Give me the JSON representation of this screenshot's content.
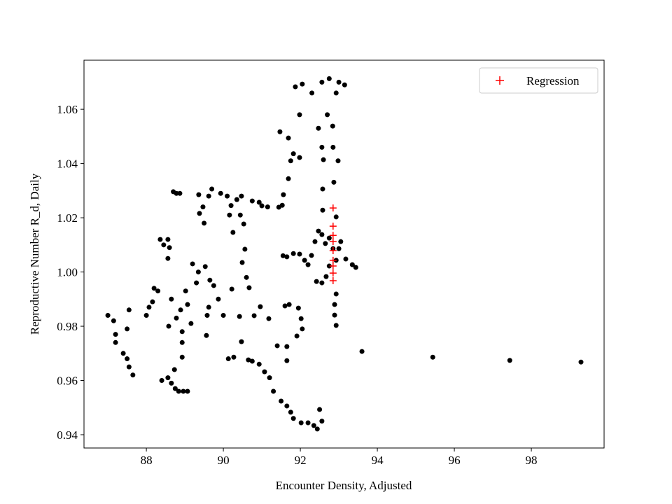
{
  "chart_data": {
    "type": "scatter",
    "xlabel": "Encounter Density, Adjusted",
    "ylabel": "Reproductive Number R_d, Daily",
    "xlim": [
      86.38,
      99.89
    ],
    "ylim": [
      0.9351,
      1.0781
    ],
    "xticks": [
      88,
      90,
      92,
      94,
      96,
      98
    ],
    "yticks": [
      0.94,
      0.96,
      0.98,
      {
        "value": 1,
        "label": "1.00"
      },
      1.02,
      1.04,
      1.06
    ],
    "legend": "upper right",
    "series": [
      {
        "color": "#000000",
        "marker": "dot",
        "x": [
          87.0,
          87.15,
          87.2,
          87.2,
          87.4,
          87.5,
          87.55,
          87.65,
          87.5,
          87.55,
          88.0,
          88.07,
          88.16,
          88.2,
          88.3,
          88.36,
          88.45,
          88.56,
          88.6,
          88.56,
          88.58,
          88.65,
          88.7,
          88.78,
          88.87,
          88.4,
          88.56,
          88.65,
          88.75,
          88.84,
          88.96,
          89.07,
          88.73,
          88.78,
          88.89,
          88.93,
          88.93,
          88.93,
          89.02,
          89.07,
          89.16,
          89.2,
          89.3,
          89.35,
          89.36,
          89.38,
          89.47,
          89.5,
          89.53,
          89.58,
          89.62,
          89.56,
          89.65,
          89.75,
          89.62,
          89.7,
          89.87,
          89.93,
          90.0,
          90.1,
          90.16,
          90.2,
          90.22,
          90.13,
          90.27,
          90.25,
          90.35,
          90.47,
          90.42,
          90.49,
          90.44,
          90.47,
          90.53,
          90.56,
          90.6,
          90.67,
          90.65,
          90.75,
          90.8,
          90.75,
          90.93,
          91.0,
          91.15,
          90.93,
          90.96,
          91.07,
          91.18,
          91.2,
          91.3,
          91.4,
          91.44,
          91.53,
          91.5,
          91.55,
          91.6,
          91.65,
          91.65,
          91.65,
          91.71,
          91.75,
          91.82,
          91.56,
          91.69,
          91.75,
          91.69,
          91.47,
          91.82,
          91.98,
          91.98,
          91.87,
          92.05,
          92.3,
          92.47,
          92.56,
          92.75,
          93.0,
          93.15,
          92.93,
          92.7,
          92.84,
          92.56,
          92.6,
          92.58,
          92.58,
          92.85,
          92.98,
          92.87,
          92.93,
          91.95,
          92.02,
          92.05,
          91.91,
          92.02,
          92.2,
          92.35,
          92.44,
          92.5,
          92.56,
          91.65,
          91.82,
          91.98,
          92.11,
          92.2,
          92.29,
          92.38,
          92.47,
          92.56,
          92.65,
          92.42,
          92.56,
          92.67,
          92.75,
          92.93,
          93.0,
          93.05,
          92.85,
          92.75,
          93.18,
          93.35,
          93.44,
          92.93,
          92.89,
          92.93,
          92.89,
          93.6,
          95.44,
          97.44,
          99.29
        ],
        "values": [
          0.984,
          0.982,
          0.977,
          0.974,
          0.97,
          0.968,
          0.965,
          0.962,
          0.979,
          0.986,
          0.984,
          0.987,
          0.989,
          0.994,
          0.993,
          1.012,
          1.01,
          1.012,
          1.009,
          1.005,
          0.98,
          0.99,
          1.0296,
          1.029,
          1.029,
          0.96,
          0.961,
          0.959,
          0.957,
          0.956,
          0.956,
          0.956,
          0.964,
          0.983,
          0.986,
          0.9686,
          0.974,
          0.978,
          0.993,
          0.988,
          0.981,
          1.003,
          0.996,
          1.0,
          1.0285,
          1.0216,
          1.024,
          1.018,
          1.002,
          0.984,
          0.987,
          0.9766,
          0.997,
          0.995,
          1.028,
          1.0306,
          0.99,
          1.029,
          0.984,
          1.028,
          1.021,
          1.0245,
          0.9937,
          0.968,
          0.9686,
          1.0146,
          1.0267,
          1.028,
          0.9836,
          1.0035,
          1.021,
          0.9743,
          1.0177,
          1.0084,
          0.998,
          0.9942,
          0.9676,
          0.9671,
          0.9839,
          1.0262,
          1.0257,
          1.0244,
          1.024,
          0.966,
          0.9872,
          0.9632,
          0.9828,
          0.961,
          0.956,
          0.9728,
          1.0239,
          1.0246,
          0.9524,
          1.006,
          0.9875,
          0.9725,
          0.9673,
          0.9506,
          0.988,
          0.9483,
          0.946,
          1.0285,
          1.0344,
          1.041,
          1.0494,
          1.0517,
          1.0436,
          1.0422,
          1.058,
          1.0683,
          1.0693,
          1.066,
          1.053,
          1.07,
          1.0713,
          1.07,
          1.069,
          1.066,
          1.058,
          1.0538,
          1.046,
          1.0414,
          1.0306,
          1.0228,
          1.046,
          1.041,
          1.0331,
          1.0203,
          0.9867,
          0.9828,
          0.979,
          0.9764,
          0.9444,
          0.9444,
          0.9434,
          0.9421,
          0.9493,
          0.945,
          1.0056,
          1.0068,
          1.0066,
          1.0043,
          1.0027,
          1.0061,
          1.0112,
          1.0151,
          1.0138,
          1.0105,
          0.9965,
          0.996,
          0.9983,
          1.0022,
          1.0043,
          1.0086,
          1.0112,
          1.0086,
          1.0125,
          1.0048,
          1.0027,
          1.0017,
          0.9919,
          0.988,
          0.9803,
          0.9841,
          0.9707,
          0.9686,
          0.9674,
          0.9668
        ]
      },
      {
        "name": "Regression",
        "color": "#ff0000",
        "marker": "plus",
        "x": [
          92.85,
          92.85,
          92.85,
          92.85,
          92.85,
          92.85,
          92.85,
          92.85,
          92.85
        ],
        "values": [
          1.0236,
          1.0169,
          1.0135,
          1.0112,
          1.0079,
          1.0043,
          1.0022,
          0.9996,
          0.9968
        ]
      }
    ]
  }
}
